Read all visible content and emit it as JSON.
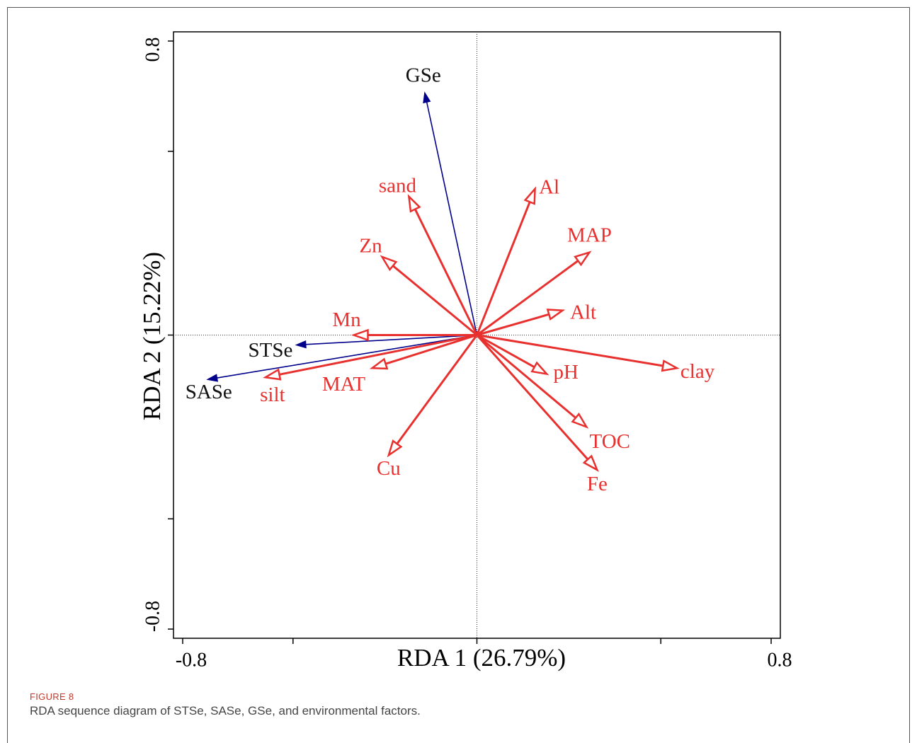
{
  "chart_data": {
    "type": "biplot",
    "xlabel": "RDA 1 (26.79%)",
    "ylabel": "RDA 2 (15.22%)",
    "xlim": [
      -0.825,
      0.825
    ],
    "ylim": [
      -0.825,
      0.825
    ],
    "xticks": [
      -0.8,
      0.8
    ],
    "yticks": [
      -0.8,
      0.8
    ],
    "minor_xticks": [
      -0.5,
      0,
      0.5
    ],
    "minor_yticks": [
      -0.5,
      0,
      0.5
    ],
    "zero_lines": true,
    "series": [
      {
        "color": "#00008b",
        "arrowhead": "filled",
        "labels": [
          "GSe",
          "STSe",
          "SASe"
        ],
        "x": [
          -0.142,
          -0.492,
          -0.733
        ],
        "y": [
          0.66,
          -0.027,
          -0.121
        ]
      },
      {
        "color": "#e8312f",
        "arrowhead": "open",
        "labels": [
          "sand",
          "Al",
          "Zn",
          "MAP",
          "Alt",
          "Mn",
          "clay",
          "pH",
          "MAT",
          "silt",
          "TOC",
          "Fe",
          "Cu"
        ],
        "x": [
          -0.185,
          0.158,
          -0.258,
          0.306,
          0.233,
          -0.335,
          0.544,
          0.19,
          -0.285,
          -0.575,
          0.298,
          0.327,
          -0.24
        ],
        "y": [
          0.377,
          0.398,
          0.213,
          0.225,
          0.067,
          0.0,
          -0.09,
          -0.106,
          -0.09,
          -0.115,
          -0.25,
          -0.367,
          -0.327
        ]
      }
    ]
  },
  "caption": {
    "label": "FIGURE 8",
    "text": "RDA sequence diagram of STSe, SASe, GSe, and environmental factors."
  }
}
